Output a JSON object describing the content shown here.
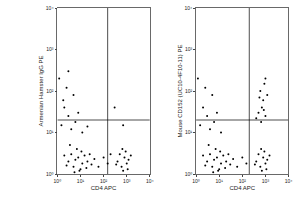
{
  "chart_data": [
    {
      "type": "scatter",
      "log": true,
      "color": "#000000",
      "marker": "dot",
      "xlabel": "CD4 APC",
      "ylabel": "Armenian Hamster IgG PE",
      "xlim": [
        1,
        10000
      ],
      "ylim": [
        1,
        10000
      ],
      "xticks": [
        {
          "value": 1,
          "label": "10⁰"
        },
        {
          "value": 10,
          "label": "10¹"
        },
        {
          "value": 100,
          "label": "10²"
        },
        {
          "value": 1000,
          "label": "10³"
        },
        {
          "value": 10000,
          "label": "10⁴"
        }
      ],
      "yticks": [
        {
          "value": 1,
          "label": "10⁰"
        },
        {
          "value": 10,
          "label": "10¹"
        },
        {
          "value": 100,
          "label": "10²"
        },
        {
          "value": 1000,
          "label": "10³"
        },
        {
          "value": 10000,
          "label": "10⁴"
        }
      ],
      "gates": {
        "x": 150,
        "y": 20
      },
      "x": [
        3,
        5,
        8,
        12,
        4,
        6,
        10,
        15,
        20,
        2.5,
        7,
        9,
        25,
        30,
        3.5,
        11,
        5.5,
        18,
        2,
        40,
        1.5,
        2,
        3,
        5,
        1.2,
        4,
        8,
        2.5,
        6,
        1.8,
        12,
        3,
        20,
        400,
        600,
        800,
        1000,
        500,
        700,
        900,
        1200,
        350,
        1500,
        650,
        1100,
        60,
        100,
        150,
        200,
        700,
        300
      ],
      "y": [
        2,
        1.5,
        2.5,
        1.8,
        3,
        2.2,
        1.3,
        2.8,
        2,
        1.6,
        4,
        1.2,
        3,
        1.7,
        5,
        3.5,
        1.1,
        1.4,
        2.8,
        2.3,
        15,
        40,
        25,
        80,
        200,
        12,
        30,
        120,
        18,
        60,
        10,
        300,
        14,
        2,
        1.5,
        2.5,
        1.8,
        3,
        1.2,
        3.5,
        2.2,
        1.7,
        2.8,
        4,
        1.3,
        1.5,
        2.5,
        1.8,
        3,
        15,
        40
      ]
    },
    {
      "type": "scatter",
      "log": true,
      "color": "#000000",
      "marker": "dot",
      "xlabel": "CD4 APC",
      "ylabel": "Mouse CD152 (UC10-4F10-11) PE",
      "xlim": [
        1,
        10000
      ],
      "ylim": [
        1,
        10000
      ],
      "xticks": [
        {
          "value": 1,
          "label": "10⁰"
        },
        {
          "value": 10,
          "label": "10¹"
        },
        {
          "value": 100,
          "label": "10²"
        },
        {
          "value": 1000,
          "label": "10³"
        },
        {
          "value": 10000,
          "label": "10⁴"
        }
      ],
      "yticks": [
        {
          "value": 1,
          "label": "10⁰"
        },
        {
          "value": 10,
          "label": "10¹"
        },
        {
          "value": 100,
          "label": "10²"
        },
        {
          "value": 1000,
          "label": "10³"
        },
        {
          "value": 10000,
          "label": "10⁴"
        }
      ],
      "gates": {
        "x": 200,
        "y": 20
      },
      "x": [
        3,
        5,
        8,
        12,
        4,
        6,
        10,
        15,
        20,
        2.5,
        7,
        9,
        25,
        30,
        3.5,
        11,
        5.5,
        18,
        2,
        40,
        1.5,
        2,
        3,
        5,
        1.2,
        4,
        8,
        2.5,
        6,
        12,
        400,
        600,
        800,
        1000,
        500,
        700,
        900,
        1200,
        350,
        1500,
        650,
        1100,
        60,
        100,
        150,
        500,
        800,
        1000,
        600,
        900,
        700,
        1200,
        400,
        1000,
        650,
        850,
        550
      ],
      "y": [
        2,
        1.5,
        2.5,
        1.8,
        3,
        2.2,
        1.3,
        2.8,
        2,
        1.6,
        4,
        1.2,
        3,
        1.7,
        5,
        3.5,
        1.1,
        1.4,
        2.8,
        2.3,
        15,
        40,
        25,
        80,
        200,
        12,
        30,
        120,
        18,
        10,
        2,
        1.5,
        2.5,
        1.8,
        3,
        1.2,
        3.5,
        2.2,
        1.7,
        2.8,
        4,
        1.3,
        1.5,
        2.5,
        1.8,
        30,
        60,
        25,
        100,
        150,
        40,
        80,
        22,
        200,
        18,
        35,
        70
      ]
    }
  ]
}
